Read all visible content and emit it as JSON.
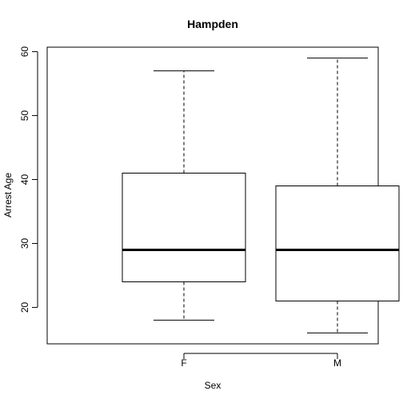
{
  "chart_data": {
    "type": "boxplot",
    "title": "Hampden",
    "xlabel": "Sex",
    "ylabel": "Arrest Age",
    "categories": [
      "F",
      "M"
    ],
    "ylim": [
      14.3,
      60.7
    ],
    "yticks": [
      20,
      30,
      40,
      50,
      60
    ],
    "boxes": [
      {
        "category": "F",
        "whisker_low": 18,
        "q1": 24,
        "median": 29,
        "q3": 41,
        "whisker_high": 57
      },
      {
        "category": "M",
        "whisker_low": 16,
        "q1": 21,
        "median": 29,
        "q3": 39,
        "whisker_high": 59
      }
    ],
    "grid": false,
    "legend": "none"
  }
}
